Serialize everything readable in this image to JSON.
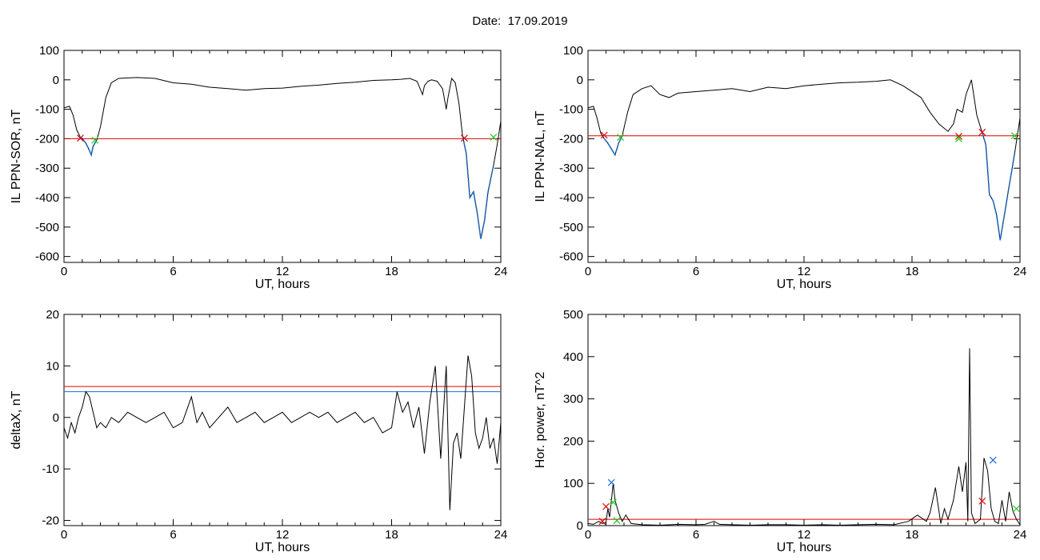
{
  "header": {
    "date_label": "Date:",
    "date_value": "17.09.2019"
  },
  "colors": {
    "trace": "#000000",
    "threshold": "#e00000",
    "blue": "#1a6fd4",
    "green": "#22cc22"
  },
  "chart_data": [
    {
      "type": "line",
      "ylabel": "IL PPN-SOR, nT",
      "xlabel": "UT, hours",
      "xlim": [
        0,
        24
      ],
      "ylim": [
        -620,
        100
      ],
      "xticks": [
        0,
        6,
        12,
        18,
        24
      ],
      "yticks": [
        100,
        0,
        -100,
        -200,
        -300,
        -400,
        -500,
        -600
      ],
      "threshold": -200,
      "x": [
        0,
        0.3,
        0.5,
        0.7,
        0.9,
        1.0,
        1.2,
        1.4,
        1.5,
        1.6,
        1.8,
        2.0,
        2.3,
        2.6,
        3.0,
        4,
        5,
        6,
        7,
        8,
        9,
        10,
        11,
        12,
        13,
        14,
        15,
        16,
        17,
        18,
        18.5,
        19,
        19.4,
        19.7,
        19.8,
        20.0,
        20.2,
        20.5,
        20.8,
        21.0,
        21.1,
        21.3,
        21.5,
        21.7,
        21.9,
        22.1,
        22.3,
        22.5,
        22.7,
        22.9,
        23.1,
        23.3,
        23.6,
        23.8,
        24
      ],
      "y": [
        -95,
        -90,
        -120,
        -170,
        -195,
        -200,
        -215,
        -240,
        -255,
        -225,
        -205,
        -160,
        -60,
        -10,
        5,
        8,
        5,
        -10,
        -15,
        -25,
        -30,
        -35,
        -30,
        -28,
        -22,
        -18,
        -12,
        -8,
        -2,
        0,
        2,
        5,
        -5,
        -50,
        -20,
        -5,
        0,
        -5,
        -30,
        -100,
        -60,
        5,
        -10,
        -80,
        -190,
        -250,
        -400,
        -380,
        -450,
        -540,
        -480,
        -380,
        -290,
        -220,
        -140
      ],
      "highlights": [
        {
          "x": [
            0.8,
            1.0,
            1.2,
            1.4,
            1.5,
            1.6,
            1.8
          ],
          "y": [
            -190,
            -200,
            -215,
            -240,
            -255,
            -225,
            -205
          ]
        },
        {
          "x": [
            21.9,
            22.1,
            22.3,
            22.5,
            22.7,
            22.9,
            23.1,
            23.3,
            23.6
          ],
          "y": [
            -190,
            -250,
            -400,
            -380,
            -450,
            -540,
            -480,
            -380,
            -290
          ]
        }
      ],
      "markers": [
        {
          "x": 0.9,
          "y": -198,
          "color": "red"
        },
        {
          "x": 1.7,
          "y": -205,
          "color": "green"
        },
        {
          "x": 22.0,
          "y": -198,
          "color": "red"
        },
        {
          "x": 23.6,
          "y": -195,
          "color": "green"
        }
      ]
    },
    {
      "type": "line",
      "ylabel": "IL PPN-NAL, nT",
      "xlabel": "UT, hours",
      "xlim": [
        0,
        24
      ],
      "ylim": [
        -620,
        100
      ],
      "xticks": [
        0,
        6,
        12,
        18,
        24
      ],
      "yticks": [
        100,
        0,
        -100,
        -200,
        -300,
        -400,
        -500,
        -600
      ],
      "threshold": -190,
      "x": [
        0,
        0.3,
        0.5,
        0.7,
        0.9,
        1.1,
        1.3,
        1.5,
        1.7,
        1.9,
        2.2,
        2.5,
        3.0,
        3.5,
        4.0,
        4.5,
        5,
        6,
        7,
        8,
        9,
        10,
        11,
        12,
        13,
        14,
        15,
        16,
        16.8,
        17.5,
        18.5,
        19.0,
        19.5,
        20.0,
        20.3,
        20.5,
        20.8,
        21.0,
        21.3,
        21.6,
        21.9,
        22.1,
        22.3,
        22.5,
        22.7,
        22.9,
        23.1,
        23.4,
        23.7,
        24
      ],
      "y": [
        -95,
        -90,
        -130,
        -180,
        -200,
        -215,
        -235,
        -255,
        -215,
        -190,
        -110,
        -50,
        -30,
        -20,
        -50,
        -60,
        -45,
        -40,
        -35,
        -30,
        -40,
        -25,
        -30,
        -20,
        -15,
        -10,
        -8,
        -5,
        0,
        -20,
        -60,
        -110,
        -150,
        -175,
        -150,
        -100,
        -110,
        -50,
        0,
        -120,
        -180,
        -220,
        -390,
        -410,
        -460,
        -545,
        -470,
        -360,
        -250,
        -130
      ],
      "highlights": [
        {
          "x": [
            0.9,
            1.1,
            1.3,
            1.5,
            1.7,
            1.9
          ],
          "y": [
            -200,
            -215,
            -235,
            -255,
            -215,
            -190
          ]
        },
        {
          "x": [
            21.9,
            22.1,
            22.3,
            22.5,
            22.7,
            22.9,
            23.1,
            23.4,
            23.7
          ],
          "y": [
            -180,
            -220,
            -390,
            -410,
            -460,
            -545,
            -470,
            -360,
            -250
          ]
        }
      ],
      "markers": [
        {
          "x": 0.9,
          "y": -188,
          "color": "red"
        },
        {
          "x": 1.8,
          "y": -195,
          "color": "green"
        },
        {
          "x": 20.6,
          "y": -192,
          "color": "red"
        },
        {
          "x": 20.6,
          "y": -200,
          "color": "green"
        },
        {
          "x": 21.9,
          "y": -178,
          "color": "red"
        },
        {
          "x": 23.7,
          "y": -190,
          "color": "green"
        }
      ]
    },
    {
      "type": "line",
      "ylabel": "deltaX, nT",
      "xlabel": "UT, hours",
      "xlim": [
        0,
        24
      ],
      "ylim": [
        -21,
        20
      ],
      "xticks": [
        0,
        6,
        12,
        18,
        24
      ],
      "yticks": [
        20,
        10,
        0,
        -10,
        -20
      ],
      "threshold": 6,
      "threshold2": 5,
      "x": [
        0,
        0.2,
        0.4,
        0.6,
        0.8,
        1.0,
        1.2,
        1.4,
        1.6,
        1.8,
        2.0,
        2.3,
        2.6,
        3.0,
        3.5,
        4.0,
        4.5,
        5.0,
        5.5,
        6.0,
        6.5,
        7.0,
        7.3,
        7.6,
        8.0,
        8.5,
        9.0,
        9.5,
        10.0,
        10.5,
        11.0,
        11.5,
        12.0,
        12.5,
        13.0,
        13.5,
        14.0,
        14.5,
        15.0,
        15.5,
        16.0,
        16.5,
        17.0,
        17.5,
        18.0,
        18.3,
        18.6,
        18.9,
        19.2,
        19.5,
        19.8,
        20.1,
        20.4,
        20.7,
        21.0,
        21.2,
        21.4,
        21.6,
        21.8,
        22.0,
        22.2,
        22.4,
        22.6,
        22.8,
        23.0,
        23.2,
        23.4,
        23.6,
        23.8,
        24
      ],
      "y": [
        -2,
        -4,
        -1,
        -3,
        0,
        2,
        5,
        4,
        1,
        -2,
        -1,
        -2,
        0,
        -1,
        1,
        0,
        -1,
        0,
        1,
        -2,
        -1,
        4,
        -1,
        1,
        -2,
        0,
        2,
        -1,
        0,
        1,
        -1,
        0,
        1,
        -1,
        0,
        1,
        0,
        1,
        -1,
        0,
        1,
        -1,
        0,
        -3,
        -2,
        5,
        1,
        3,
        -2,
        2,
        -7,
        3,
        10,
        -8,
        10,
        -18,
        -5,
        -3,
        -8,
        2,
        12,
        8,
        -3,
        -6,
        -4,
        0,
        -6,
        -4,
        -9,
        -1
      ],
      "markers": []
    },
    {
      "type": "line",
      "ylabel": "Hor. power, nT^2",
      "xlabel": "UT, hours",
      "xlim": [
        0,
        24
      ],
      "ylim": [
        0,
        500
      ],
      "xticks": [
        0,
        6,
        12,
        18,
        24
      ],
      "yticks": [
        500,
        400,
        300,
        200,
        100,
        0
      ],
      "threshold": 15,
      "x": [
        0,
        0.3,
        0.6,
        0.8,
        1.0,
        1.1,
        1.2,
        1.4,
        1.5,
        1.7,
        1.9,
        2.1,
        2.4,
        3,
        4,
        5,
        6,
        6.5,
        7.0,
        7.3,
        8,
        9,
        10,
        11,
        12,
        13,
        14,
        15,
        16,
        17,
        17.8,
        18.3,
        18.8,
        19.0,
        19.3,
        19.6,
        19.8,
        20.0,
        20.3,
        20.6,
        20.8,
        21.0,
        21.1,
        21.2,
        21.3,
        21.5,
        21.8,
        22.0,
        22.2,
        22.4,
        22.6,
        22.8,
        23.0,
        23.2,
        23.4,
        23.6,
        23.8,
        24
      ],
      "y": [
        5,
        3,
        10,
        5,
        8,
        40,
        20,
        100,
        60,
        30,
        10,
        25,
        5,
        2,
        1,
        3,
        2,
        3,
        10,
        3,
        2,
        1,
        2,
        2,
        1,
        2,
        1,
        2,
        3,
        2,
        10,
        25,
        10,
        30,
        90,
        5,
        40,
        15,
        60,
        140,
        80,
        150,
        10,
        420,
        30,
        5,
        15,
        160,
        130,
        40,
        10,
        5,
        60,
        10,
        80,
        35,
        15,
        2
      ],
      "markers": [
        {
          "x": 1.0,
          "y": 45,
          "color": "red"
        },
        {
          "x": 1.3,
          "y": 102,
          "color": "blue"
        },
        {
          "x": 1.4,
          "y": 55,
          "color": "green"
        },
        {
          "x": 0.8,
          "y": 10,
          "color": "red"
        },
        {
          "x": 1.6,
          "y": 12,
          "color": "green"
        },
        {
          "x": 21.9,
          "y": 58,
          "color": "red"
        },
        {
          "x": 22.5,
          "y": 155,
          "color": "blue"
        },
        {
          "x": 23.8,
          "y": 40,
          "color": "green"
        }
      ]
    }
  ]
}
